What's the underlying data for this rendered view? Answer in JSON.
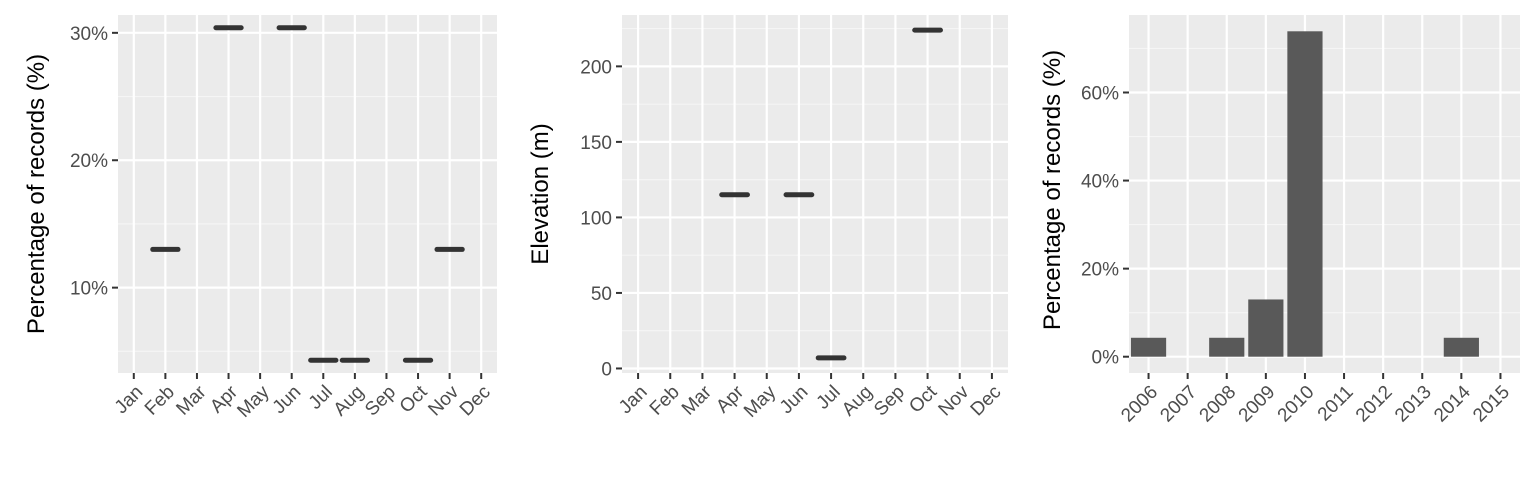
{
  "colors": {
    "panel_background": "#ebebeb",
    "grid_major": "#ffffff",
    "grid_minor": "#f5f5f5",
    "mark": "#333333",
    "bar": "#595959",
    "tick_text": "#4d4d4d",
    "axis_title": "#000000"
  },
  "chart_data": [
    {
      "type": "scatter",
      "mark": "horizontal segment",
      "title": "",
      "xlabel": "",
      "ylabel": "Percentage of records (%)",
      "categories": [
        "Jan",
        "Feb",
        "Mar",
        "Apr",
        "May",
        "Jun",
        "Jul",
        "Aug",
        "Sep",
        "Oct",
        "Nov",
        "Dec"
      ],
      "x": [
        "Feb",
        "Apr",
        "Jun",
        "Jul",
        "Aug",
        "Oct",
        "Nov"
      ],
      "values": [
        13.0,
        30.4,
        30.4,
        4.3,
        4.3,
        4.3,
        13.0
      ],
      "ylim": [
        3.3,
        31.4
      ],
      "yticks": [
        10,
        20,
        30
      ],
      "ytick_labels": [
        "10%",
        "20%",
        "30%"
      ],
      "grid": true
    },
    {
      "type": "scatter",
      "mark": "horizontal segment",
      "title": "",
      "xlabel": "",
      "ylabel": "Elevation (m)",
      "categories": [
        "Jan",
        "Feb",
        "Mar",
        "Apr",
        "May",
        "Jun",
        "Jul",
        "Aug",
        "Sep",
        "Oct",
        "Nov",
        "Dec"
      ],
      "x": [
        "Apr",
        "Jun",
        "Jul",
        "Oct"
      ],
      "values": [
        115,
        115,
        7,
        224
      ],
      "ylim": [
        -3,
        234
      ],
      "yticks": [
        0,
        50,
        100,
        150,
        200
      ],
      "ytick_labels": [
        "0",
        "50",
        "100",
        "150",
        "200"
      ],
      "grid": true
    },
    {
      "type": "bar",
      "title": "",
      "xlabel": "",
      "ylabel": "Percentage of records (%)",
      "categories": [
        "2006",
        "2007",
        "2008",
        "2009",
        "2010",
        "2011",
        "2012",
        "2013",
        "2014",
        "2015"
      ],
      "values": [
        4.3,
        0,
        4.3,
        13.0,
        73.9,
        0,
        0,
        0,
        4.3,
        0
      ],
      "ylim": [
        -3.7,
        77.6
      ],
      "yticks": [
        0,
        20,
        40,
        60
      ],
      "ytick_labels": [
        "0%",
        "20%",
        "40%",
        "60%"
      ],
      "grid": true
    }
  ]
}
